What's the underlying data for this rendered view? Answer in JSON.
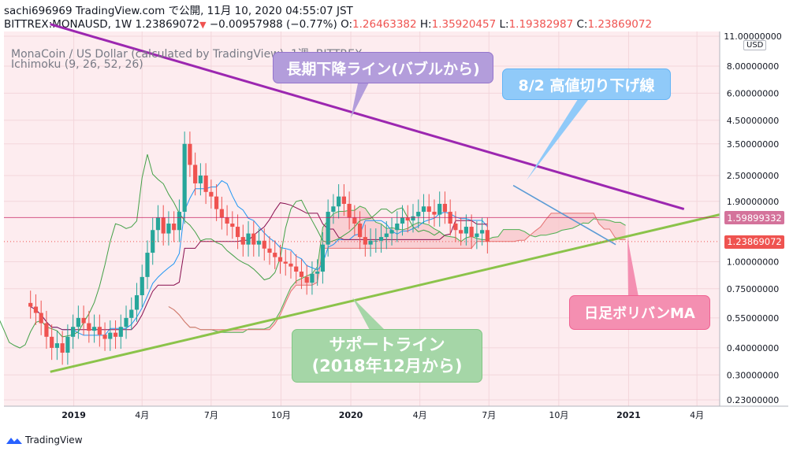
{
  "header": {
    "line1": "sachi696969 TradingView.com で公開, 11月 10, 2020 04:55:07 JST",
    "symbol": "BITTREX:MONAUSD, 1W",
    "price": "1.23869072",
    "change": "−0.00957988 (−0.77%)",
    "o_label": "O:",
    "o_value": "1.26463382",
    "h_label": "H:",
    "h_value": "1.35920457",
    "l_label": "L:",
    "l_value": "1.19382987",
    "c_label": "C:",
    "c_value": "1.23869072"
  },
  "legend": {
    "line1": "MonaCoin / US Dollar (calculated by TradingView), 1週, BITTREX",
    "line2": "Ichimoku (9, 26, 52, 26)"
  },
  "callouts": {
    "trend": "長期下降ライン(バブルから)",
    "high": "8/2 高値切り下げ線",
    "bollinger": "日足ボリバンMA",
    "support_line1": "サポートライン",
    "support_line2": "(2018年12月から)"
  },
  "price_axis": {
    "currency": "USD",
    "ticks": [
      "11.00000000",
      "8.00000000",
      "6.00000000",
      "4.50000000",
      "3.50000000",
      "2.50000000",
      "1.90000000",
      "1.00000000",
      "0.75000000",
      "0.55000000",
      "0.40000000",
      "0.30000000",
      "0.23000000"
    ],
    "badge_pink": "1.59899332",
    "badge_red": "1.23869072"
  },
  "time_axis": {
    "ticks": [
      "2019",
      "4月",
      "7月",
      "10月",
      "2020",
      "4月",
      "7月",
      "10月",
      "2021",
      "4月"
    ]
  },
  "footer": {
    "brand": "TradingView"
  },
  "colors": {
    "up": "#26a69a",
    "down": "#ef5350",
    "cloud": "#f8c8cc",
    "trend_line": "#9c27b0",
    "support_line": "#8bc34a",
    "high_line": "#5b9bd5"
  },
  "chart_data": {
    "type": "candlestick",
    "scale": "log",
    "ylim": [
      0.23,
      11.0
    ],
    "xlim": [
      "2018-10-01",
      "2021-05-01"
    ],
    "candles_weekly_close": [
      0.62,
      0.58,
      0.52,
      0.45,
      0.4,
      0.42,
      0.38,
      0.45,
      0.5,
      0.55,
      0.52,
      0.48,
      0.5,
      0.46,
      0.44,
      0.47,
      0.45,
      0.5,
      0.55,
      0.6,
      0.7,
      0.85,
      1.1,
      1.4,
      1.6,
      1.35,
      1.5,
      1.4,
      1.7,
      3.5,
      2.8,
      2.3,
      2.5,
      2.1,
      2.0,
      1.75,
      1.6,
      1.5,
      1.45,
      1.3,
      1.2,
      1.35,
      1.2,
      1.25,
      1.15,
      1.1,
      1.05,
      1.0,
      0.98,
      0.95,
      0.9,
      0.85,
      0.8,
      0.88,
      0.9,
      1.2,
      1.7,
      1.8,
      2.0,
      1.85,
      1.6,
      1.5,
      1.3,
      1.2,
      1.25,
      1.25,
      1.3,
      1.35,
      1.4,
      1.5,
      1.6,
      1.55,
      1.62,
      1.7,
      1.8,
      1.7,
      1.65,
      1.85,
      1.7,
      1.5,
      1.4,
      1.35,
      1.45,
      1.3,
      1.35,
      1.4,
      1.24
    ],
    "support_line": {
      "start": [
        "2018-12-01",
        0.31
      ],
      "end": [
        "2021-05-01",
        1.65
      ]
    },
    "trend_line": {
      "start": [
        "2018-12-01",
        12.5
      ],
      "end": [
        "2021-03-15",
        1.75
      ]
    },
    "high_line": {
      "start": [
        "2020-08-02",
        2.25
      ],
      "end": [
        "2020-12-15",
        1.2
      ]
    },
    "last_price": 1.23869072,
    "horizontal_level": 1.59899332
  }
}
